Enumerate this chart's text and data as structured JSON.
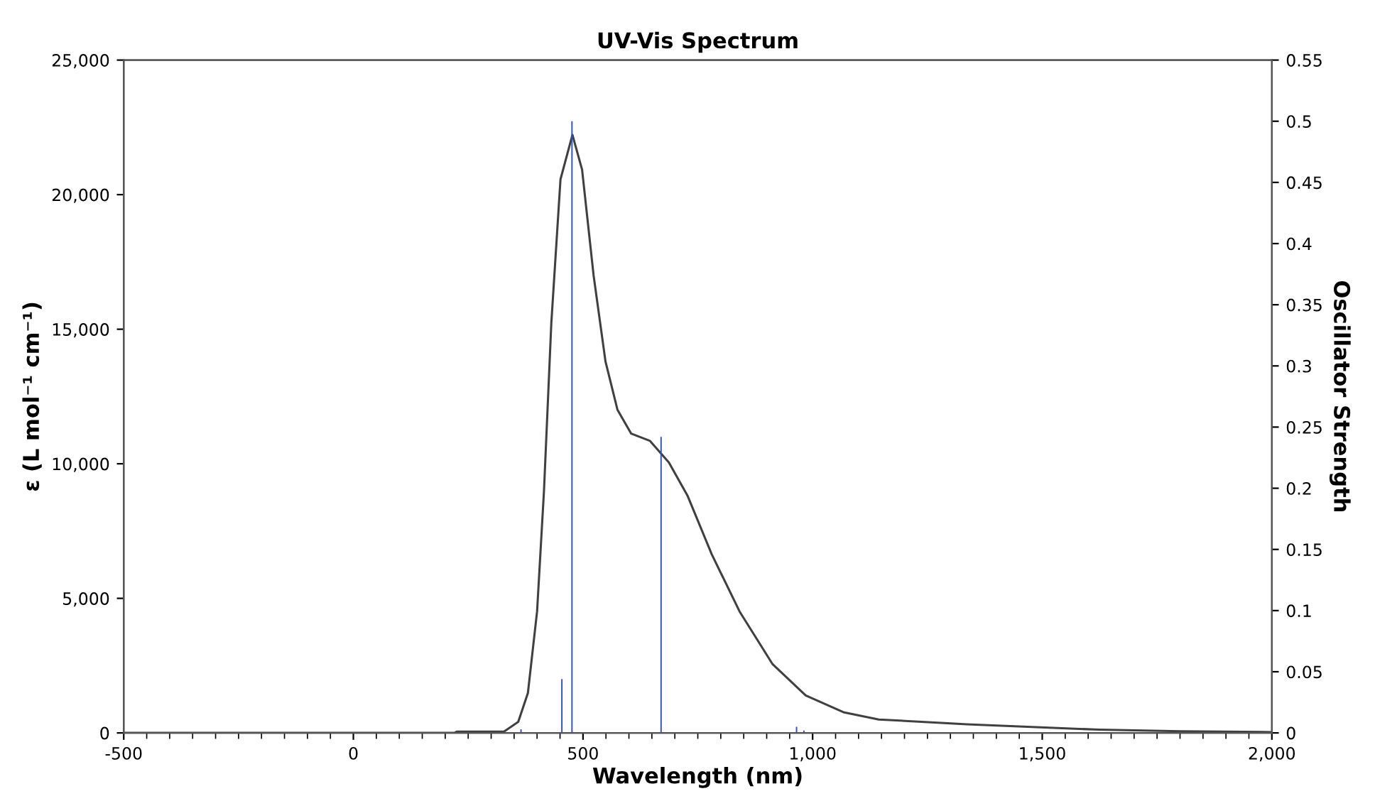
{
  "chart_data": {
    "type": "line",
    "title": "UV-Vis Spectrum",
    "xlabel": "Wavelength (nm)",
    "ylabel": "ε (L mol⁻¹ cm⁻¹)",
    "y2label": "Oscillator Strength",
    "xlim": [
      -500,
      2000
    ],
    "xticks": [
      {
        "value": -500,
        "label": "-500"
      },
      {
        "value": 0,
        "label": "0"
      },
      {
        "value": 500,
        "label": "500"
      },
      {
        "value": 1000,
        "label": "1,000"
      },
      {
        "value": 1500,
        "label": "1,500"
      },
      {
        "value": 2000,
        "label": "2,000"
      }
    ],
    "ylim": [
      0,
      25000
    ],
    "yticks": [
      {
        "value": 0,
        "label": "0"
      },
      {
        "value": 5000,
        "label": "5,000"
      },
      {
        "value": 10000,
        "label": "10,000"
      },
      {
        "value": 15000,
        "label": "15,000"
      },
      {
        "value": 20000,
        "label": "20,000"
      },
      {
        "value": 25000,
        "label": "25,000"
      }
    ],
    "y2lim": [
      0,
      0.55
    ],
    "y2ticks": [
      0,
      0.05,
      0.1,
      0.15,
      0.2,
      0.25,
      0.3,
      0.35,
      0.4,
      0.45,
      0.5,
      0.55
    ],
    "grid": false,
    "series": [
      {
        "color": "#404040",
        "x": [
          -500,
          220,
          225,
          328,
          359,
          380,
          400,
          415,
          431,
          451,
          477,
          498,
          523,
          549,
          575,
          605,
          646,
          687,
          728,
          780,
          841,
          913,
          985,
          1067,
          1144,
          1336,
          1624,
          1800,
          2000
        ],
        "values": [
          0,
          0,
          50,
          50,
          410,
          1480,
          4510,
          8980,
          15220,
          20570,
          22220,
          20930,
          17010,
          13800,
          12010,
          11120,
          10850,
          10050,
          8800,
          6650,
          4510,
          2550,
          1390,
          770,
          500,
          320,
          120,
          60,
          30
        ]
      },
      {
        "type": "bar",
        "axis": "y2",
        "color": "#3050c0",
        "x": [
          365,
          454,
          476,
          670,
          965,
          981
        ],
        "values": [
          0.003,
          0.044,
          0.5,
          0.242,
          0.005,
          0.002
        ]
      }
    ]
  }
}
